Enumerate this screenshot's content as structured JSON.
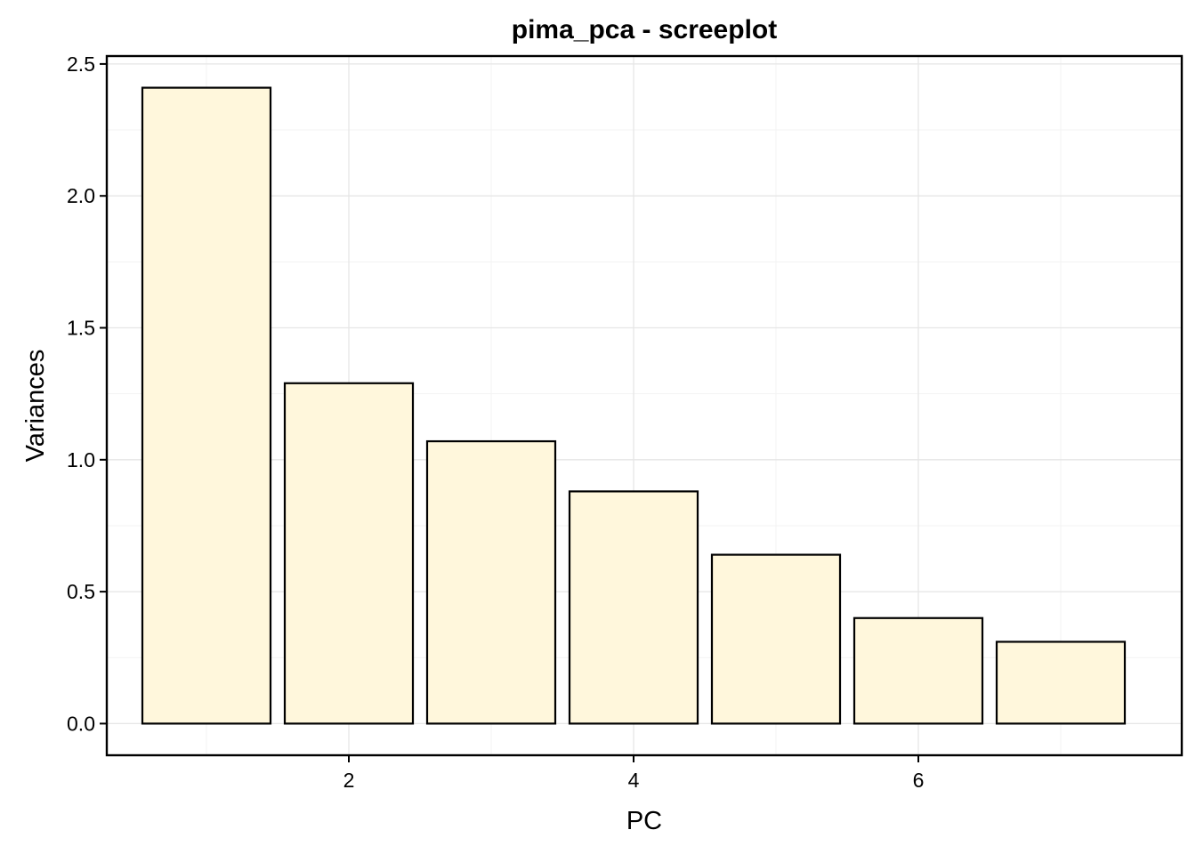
{
  "chart_data": {
    "type": "bar",
    "title": "pima_pca - screeplot",
    "xlabel": "PC",
    "ylabel": "Variances",
    "x": [
      1,
      2,
      3,
      4,
      5,
      6,
      7
    ],
    "values": [
      2.41,
      1.29,
      1.07,
      0.88,
      0.64,
      0.4,
      0.31
    ],
    "xlim": [
      0.3,
      7.85
    ],
    "ylim": [
      -0.12,
      2.53
    ],
    "xticks": [
      2,
      4,
      6
    ],
    "xtick_labels": [
      "2",
      "4",
      "6"
    ],
    "yticks": [
      0,
      0.5,
      1,
      1.5,
      2,
      2.5
    ],
    "ytick_labels": [
      "0.0",
      "0.5",
      "1.0",
      "1.5",
      "2.0",
      "2.5"
    ],
    "grid": true,
    "bar_fill": "#fff7dc",
    "bar_edge": "#000000"
  }
}
